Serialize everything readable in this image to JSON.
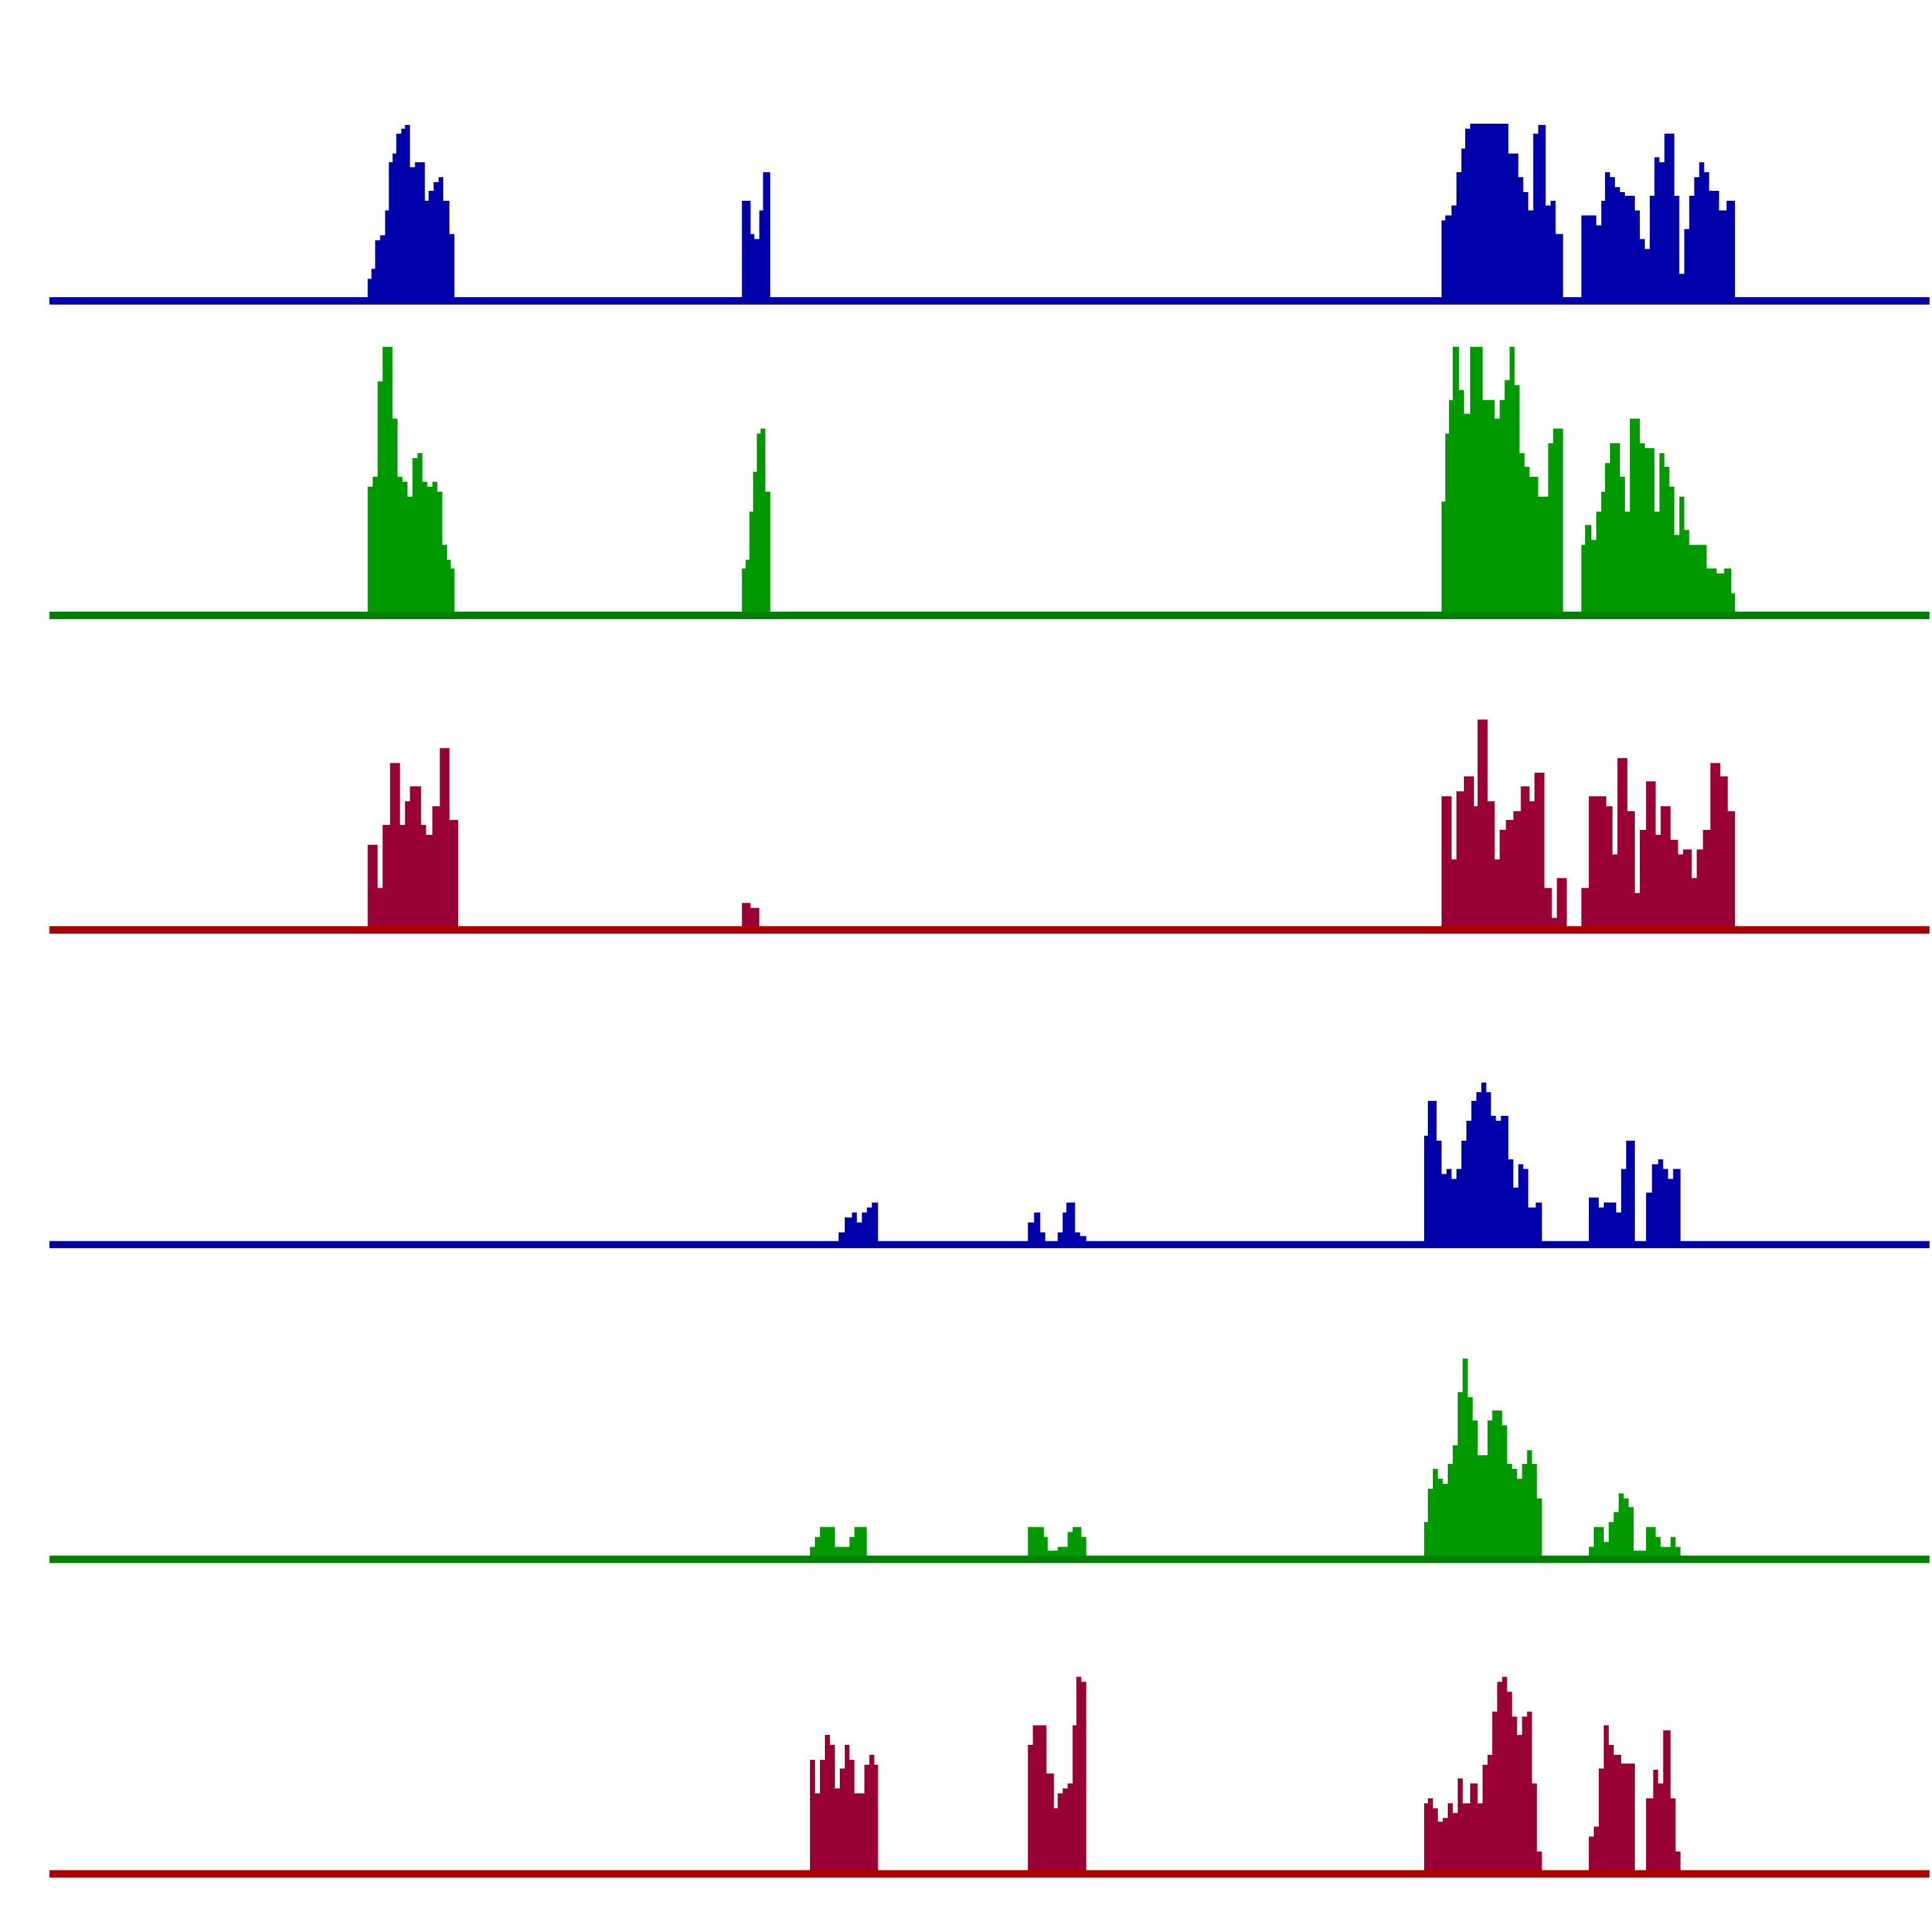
{
  "chart_data": [
    {
      "type": "histogram",
      "color": "#0000aa",
      "baseline_color": "#0000aa",
      "xlim": [
        40,
        1558
      ],
      "ylim": [
        0,
        220
      ],
      "bins": [
        40,
        297,
        300,
        303,
        307,
        311,
        314,
        317,
        320,
        324,
        327,
        331,
        335,
        343,
        346,
        350,
        354,
        358,
        363,
        367,
        599,
        606,
        609,
        613,
        616,
        622,
        1164,
        1167,
        1172,
        1176,
        1180,
        1183,
        1187,
        1218,
        1222,
        1226,
        1230,
        1234,
        1238,
        1242,
        1248,
        1252,
        1256,
        1262,
        1277,
        1289,
        1293,
        1296,
        1300,
        1304,
        1308,
        1312,
        1320,
        1324,
        1328,
        1332,
        1336,
        1340,
        1344,
        1352,
        1356,
        1360,
        1364,
        1368,
        1372,
        1376,
        1380,
        1388,
        1394,
        1401,
        1558
      ],
      "values": [
        0,
        15,
        23,
        46,
        50,
        70,
        109,
        116,
        132,
        136,
        139,
        105,
        109,
        78,
        86,
        93,
        97,
        78,
        51,
        0,
        78,
        51,
        47,
        70,
        101,
        0,
        62,
        66,
        74,
        101,
        120,
        136,
        140,
        116,
        116,
        97,
        85,
        70,
        132,
        139,
        74,
        78,
        51,
        0,
        66,
        58,
        78,
        101,
        97,
        89,
        85,
        82,
        70,
        47,
        39,
        82,
        113,
        109,
        132,
        82,
        19,
        55,
        82,
        97,
        109,
        101,
        86,
        70,
        78,
        0
      ]
    },
    {
      "type": "histogram",
      "color": "#009900",
      "baseline_color": "#008000",
      "xlim": [
        40,
        1558
      ],
      "ylim": [
        0,
        220
      ],
      "bins": [
        40,
        297,
        301,
        305,
        309,
        317,
        321,
        325,
        329,
        333,
        337,
        341,
        345,
        349,
        353,
        357,
        361,
        364,
        367,
        599,
        602,
        605,
        608,
        611,
        614,
        618,
        622,
        1164,
        1167,
        1170,
        1173,
        1178,
        1182,
        1187,
        1197,
        1207,
        1211,
        1215,
        1219,
        1223,
        1227,
        1231,
        1235,
        1239,
        1242,
        1250,
        1254,
        1262,
        1277,
        1280,
        1285,
        1289,
        1293,
        1296,
        1300,
        1304,
        1308,
        1312,
        1316,
        1324,
        1328,
        1336,
        1340,
        1344,
        1348,
        1352,
        1356,
        1360,
        1364,
        1368,
        1378,
        1386,
        1392,
        1398,
        1401,
        1558
      ],
      "values": [
        0,
        101,
        109,
        186,
        214,
        156,
        109,
        105,
        93,
        124,
        128,
        105,
        101,
        105,
        97,
        54,
        42,
        35,
        0,
        35,
        42,
        81,
        113,
        144,
        148,
        97,
        0,
        89,
        144,
        171,
        214,
        179,
        160,
        214,
        171,
        156,
        171,
        187,
        214,
        183,
        128,
        117,
        109,
        109,
        93,
        136,
        148,
        0,
        54,
        70,
        58,
        81,
        97,
        120,
        136,
        136,
        109,
        81,
        156,
        136,
        132,
        81,
        128,
        117,
        101,
        62,
        93,
        66,
        54,
        54,
        35,
        31,
        35,
        15,
        0
      ]
    },
    {
      "type": "histogram",
      "color": "#990033",
      "baseline_color": "#aa0000",
      "xlim": [
        40,
        1558
      ],
      "ylim": [
        0,
        220
      ],
      "bins": [
        40,
        297,
        305,
        309,
        315,
        323,
        327,
        331,
        340,
        344,
        349,
        355,
        363,
        370,
        599,
        606,
        613,
        1164,
        1172,
        1176,
        1182,
        1190,
        1193,
        1201,
        1207,
        1211,
        1216,
        1222,
        1228,
        1235,
        1239,
        1247,
        1253,
        1257,
        1265,
        1277,
        1283,
        1297,
        1302,
        1306,
        1314,
        1320,
        1324,
        1329,
        1337,
        1341,
        1349,
        1355,
        1359,
        1366,
        1370,
        1375,
        1381,
        1389,
        1395,
        1401,
        1558
      ],
      "values": [
        0,
        66,
        31,
        82,
        132,
        82,
        101,
        113,
        82,
        74,
        97,
        144,
        86,
        0,
        19,
        15,
        0,
        105,
        54,
        109,
        121,
        97,
        167,
        101,
        54,
        78,
        86,
        93,
        113,
        101,
        124,
        31,
        7,
        39,
        0,
        31,
        105,
        97,
        58,
        136,
        93,
        27,
        78,
        117,
        74,
        97,
        70,
        58,
        62,
        39,
        62,
        78,
        132,
        121,
        93,
        0
      ]
    },
    {
      "type": "histogram",
      "color": "#0000aa",
      "baseline_color": "#0000aa",
      "xlim": [
        40,
        1558
      ],
      "ylim": [
        0,
        220
      ],
      "bins": [
        40,
        677,
        682,
        688,
        692,
        696,
        700,
        704,
        709,
        830,
        835,
        840,
        844,
        854,
        858,
        861,
        868,
        872,
        877,
        1150,
        1153,
        1160,
        1164,
        1168,
        1172,
        1176,
        1180,
        1184,
        1188,
        1192,
        1196,
        1200,
        1204,
        1208,
        1212,
        1218,
        1222,
        1226,
        1230,
        1234,
        1240,
        1245,
        1283,
        1287,
        1291,
        1295,
        1305,
        1309,
        1313,
        1320,
        1329,
        1334,
        1339,
        1343,
        1347,
        1351,
        1357,
        1558
      ],
      "values": [
        0,
        7,
        19,
        23,
        15,
        23,
        27,
        31,
        0,
        15,
        23,
        7,
        0,
        7,
        23,
        31,
        7,
        4,
        0,
        85,
        113,
        81,
        54,
        58,
        50,
        58,
        81,
        97,
        113,
        120,
        128,
        120,
        101,
        97,
        101,
        66,
        43,
        62,
        58,
        27,
        31,
        0,
        35,
        35,
        27,
        31,
        23,
        58,
        81,
        0,
        39,
        62,
        66,
        58,
        50,
        58,
        0
      ]
    },
    {
      "type": "histogram",
      "color": "#009900",
      "baseline_color": "#008000",
      "xlim": [
        40,
        1558
      ],
      "ylim": [
        0,
        220
      ],
      "bins": [
        40,
        654,
        658,
        662,
        674,
        686,
        690,
        700,
        830,
        843,
        846,
        854,
        862,
        866,
        873,
        877,
        1150,
        1153,
        1157,
        1161,
        1165,
        1169,
        1173,
        1177,
        1181,
        1185,
        1189,
        1193,
        1197,
        1201,
        1205,
        1213,
        1217,
        1221,
        1225,
        1229,
        1233,
        1237,
        1241,
        1245,
        1283,
        1287,
        1295,
        1299,
        1303,
        1307,
        1311,
        1315,
        1319,
        1329,
        1337,
        1341,
        1349,
        1353,
        1357,
        1558
      ],
      "values": [
        0,
        7,
        15,
        23,
        7,
        15,
        23,
        0,
        23,
        15,
        4,
        7,
        19,
        23,
        15,
        0,
        27,
        54,
        70,
        62,
        58,
        74,
        89,
        132,
        159,
        128,
        109,
        81,
        81,
        109,
        117,
        105,
        74,
        70,
        62,
        74,
        85,
        74,
        46,
        0,
        7,
        23,
        11,
        27,
        35,
        50,
        46,
        39,
        4,
        23,
        15,
        7,
        15,
        7,
        0
      ]
    },
    {
      "type": "histogram",
      "color": "#990033",
      "baseline_color": "#aa0000",
      "xlim": [
        40,
        1558
      ],
      "ylim": [
        0,
        220
      ],
      "bins": [
        40,
        654,
        658,
        662,
        666,
        670,
        674,
        678,
        682,
        686,
        690,
        698,
        702,
        706,
        709,
        830,
        834,
        845,
        851,
        854,
        858,
        862,
        866,
        869,
        873,
        877,
        1150,
        1153,
        1157,
        1161,
        1165,
        1169,
        1173,
        1177,
        1181,
        1187,
        1193,
        1197,
        1201,
        1205,
        1209,
        1213,
        1217,
        1221,
        1225,
        1229,
        1233,
        1237,
        1241,
        1245,
        1283,
        1287,
        1291,
        1295,
        1299,
        1303,
        1309,
        1320,
        1329,
        1335,
        1339,
        1343,
        1349,
        1353,
        1357,
        1558
      ],
      "values": [
        0,
        89,
        62,
        89,
        109,
        101,
        66,
        82,
        101,
        89,
        62,
        85,
        93,
        85,
        0,
        101,
        117,
        78,
        50,
        62,
        66,
        70,
        117,
        156,
        152,
        0,
        54,
        58,
        50,
        39,
        42,
        54,
        46,
        74,
        54,
        70,
        54,
        85,
        93,
        128,
        152,
        156,
        144,
        124,
        109,
        124,
        128,
        70,
        15,
        0,
        27,
        35,
        82,
        117,
        101,
        93,
        86,
        0,
        58,
        81,
        70,
        113,
        58,
        15,
        0
      ]
    }
  ]
}
